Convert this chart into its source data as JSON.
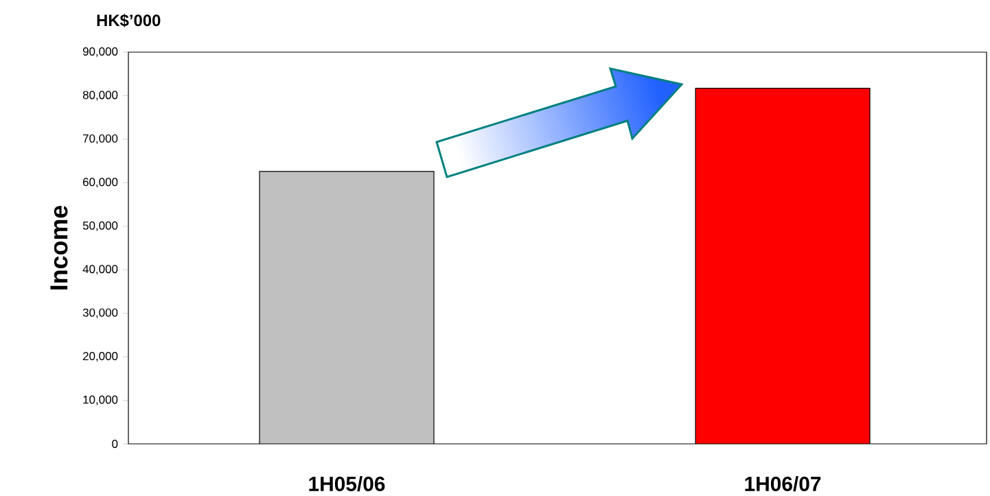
{
  "chart_data": {
    "type": "bar",
    "ylabel": "Income",
    "annotations": [
      "HK$’000"
    ],
    "categories": [
      "1H05/06",
      "1H06/07"
    ],
    "values": [
      62600,
      81700
    ],
    "colors": [
      "#c0c0c0",
      "#ff0000"
    ],
    "ylim": [
      0,
      90000
    ],
    "yticks": [
      {
        "value": 0,
        "label": "0"
      },
      {
        "value": 10000,
        "label": "10,000"
      },
      {
        "value": 20000,
        "label": "20,000"
      },
      {
        "value": 30000,
        "label": "30,000"
      },
      {
        "value": 40000,
        "label": "40,000"
      },
      {
        "value": 50000,
        "label": "50,000"
      },
      {
        "value": 60000,
        "label": "60,000"
      },
      {
        "value": 70000,
        "label": "70,000"
      },
      {
        "value": 80000,
        "label": "80,000"
      },
      {
        "value": 90000,
        "label": "90,000"
      }
    ],
    "grid": false
  }
}
